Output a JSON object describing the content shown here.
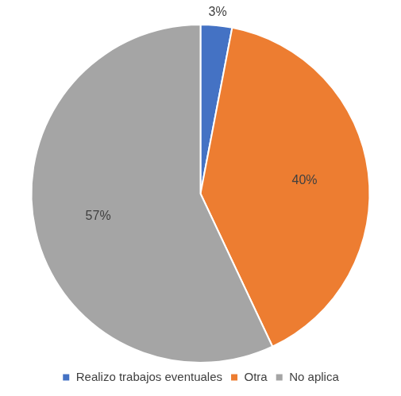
{
  "chart_data": {
    "type": "pie",
    "categories": [
      "Realizo trabajos eventuales",
      "Otra",
      "No aplica"
    ],
    "values": [
      3,
      40,
      57
    ],
    "value_labels": [
      "3%",
      "40%",
      "57%"
    ],
    "colors": [
      "#4472c4",
      "#ed7d31",
      "#a5a5a5"
    ],
    "data_labels": true,
    "legend": "bottom"
  }
}
